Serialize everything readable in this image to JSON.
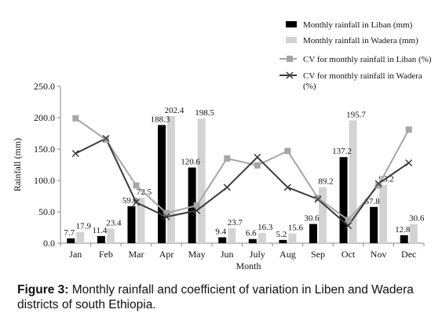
{
  "caption": {
    "label": "Figure 3:",
    "text": " Monthly rainfall and coefficient of variation in Liben and Wadera districts of south Ethiopia."
  },
  "chart_data": {
    "type": "bar",
    "title": "",
    "xlabel": "Month",
    "ylabel": "Rainfall (mm)",
    "ylim": [
      0,
      250
    ],
    "yticks": [
      "0.0",
      "50.0",
      "100.0",
      "150.0",
      "200.0",
      "250.0"
    ],
    "grid": false,
    "legend_position": "top-right",
    "categories": [
      "Jan",
      "Feb",
      "Mar",
      "Apr",
      "May",
      "Jun",
      "July",
      "Aug",
      "Sep",
      "Oct",
      "Nov",
      "Dec"
    ],
    "bar_series": [
      {
        "name": "Monthly rainfall in Liban (mm)",
        "color": "#000000",
        "values": [
          7.7,
          11.4,
          59.0,
          188.3,
          120.6,
          9.4,
          6.6,
          5.2,
          30.6,
          137.2,
          57.8,
          12.8
        ],
        "labels": [
          "7.7",
          "11.4",
          "59.0",
          "188.3",
          "120.6",
          "9.4",
          "6.6",
          "5.2",
          "30.6",
          "137.2",
          "57.8",
          "12.8"
        ]
      },
      {
        "name": "Monthly rainfall in Wadera (mm)",
        "color": "#d3d3d3",
        "values": [
          17.9,
          23.4,
          72.5,
          202.4,
          198.5,
          23.7,
          16.3,
          15.6,
          89.2,
          195.7,
          93.2,
          30.6
        ],
        "labels": [
          "17.9",
          "23.4",
          "72.5",
          "202.4",
          "198.5",
          "23.7",
          "16.3",
          "15.6",
          "89.2",
          "195.7",
          "93.2",
          "30.6"
        ]
      }
    ],
    "line_series": [
      {
        "name": "CV for monthly rainfall in Liban (%)",
        "color": "#a6a6a6",
        "marker": "square",
        "values": [
          199,
          165,
          92,
          48,
          60,
          135,
          124,
          147,
          72,
          37,
          92,
          181
        ]
      },
      {
        "name": "CV for monthly rainfall in Wadera (%)",
        "color": "#3b3b3b",
        "marker": "x",
        "values": [
          143,
          167,
          65,
          42,
          52,
          89,
          137,
          89,
          70,
          28,
          95,
          128
        ]
      }
    ]
  }
}
